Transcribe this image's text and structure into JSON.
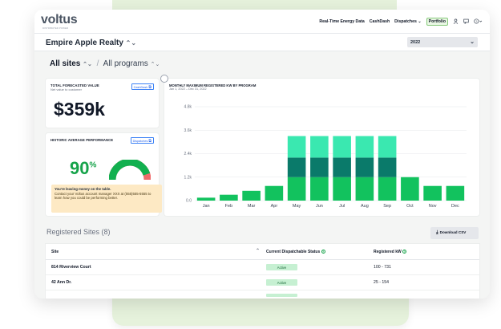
{
  "app": {
    "logo": "voltus",
    "logo_tagline": "DISTRIBUTED POWER"
  },
  "nav": {
    "links": [
      "Real-Time Energy Data",
      "CashDash",
      "Dispatches"
    ],
    "dispatches_caret": "⌄",
    "active": "Portfolio",
    "icons": [
      "user-icon",
      "chat-icon",
      "help-icon"
    ]
  },
  "company": {
    "name": "Empire Apple Realty",
    "chevron": "⌃⌄"
  },
  "year_select": {
    "value": "2022"
  },
  "filters": {
    "sites": "All sites",
    "separator": "/",
    "programs": "All programs"
  },
  "forecast_card": {
    "label": "TOTAL FORECASTED VALUE",
    "sublabel": "Net value to customer",
    "button": "CashDash",
    "value": "$359k"
  },
  "performance_card": {
    "label": "HISTORIC AVERAGE PERFORMANCE",
    "button": "Dispatches",
    "percent_number": "90",
    "percent_sign": "%",
    "gauge_value": 0.9,
    "warning_title": "You're leaving money on the table.",
    "warning_text": "Contact your Voltus account manager XXX at (555)555-5555 to learn how you could be performing better."
  },
  "chart_data": {
    "type": "bar",
    "title": "MONTHLY MAXIMUM REGISTERED KW BY PROGRAM",
    "subtitle": "Jan 1, 2022 – Dec 31, 2022",
    "categories": [
      "Jan",
      "Feb",
      "Mar",
      "Apr",
      "May",
      "Jun",
      "Jul",
      "Aug",
      "Sep",
      "Oct",
      "Nov",
      "Dec"
    ],
    "series": [
      {
        "values": [
          150,
          300,
          500,
          750,
          1200,
          1200,
          1200,
          1200,
          1200,
          1200,
          750,
          750
        ]
      },
      {
        "values": [
          0,
          0,
          0,
          0,
          1000,
          1000,
          1000,
          1000,
          1000,
          0,
          0,
          0
        ]
      },
      {
        "values": [
          0,
          0,
          0,
          0,
          1100,
          1100,
          1100,
          1100,
          1100,
          0,
          0,
          0
        ]
      }
    ],
    "colors": [
      "#12c25e",
      "#0a7a6a",
      "#3ae8b0"
    ],
    "yticks": [
      "0.0",
      "1.2k",
      "2.4k",
      "3.6k",
      "4.8k"
    ],
    "ylim": [
      0,
      4800
    ],
    "grid": true
  },
  "sites": {
    "header": "Registered Sites (8)",
    "download": "Download CSV",
    "columns": [
      "Site",
      "Current Dispatchable Status",
      "Registered kW"
    ],
    "rows": [
      {
        "site": "814 Riverview Court",
        "status": "Active",
        "kw": "100 - 731"
      },
      {
        "site": "42 Ann Dr.",
        "status": "Active",
        "kw": "25 - 154"
      }
    ]
  },
  "colors": {
    "accent": "#16a34a",
    "warning_bg": "#fde9c4",
    "badge_bg": "#c6f0d2"
  }
}
